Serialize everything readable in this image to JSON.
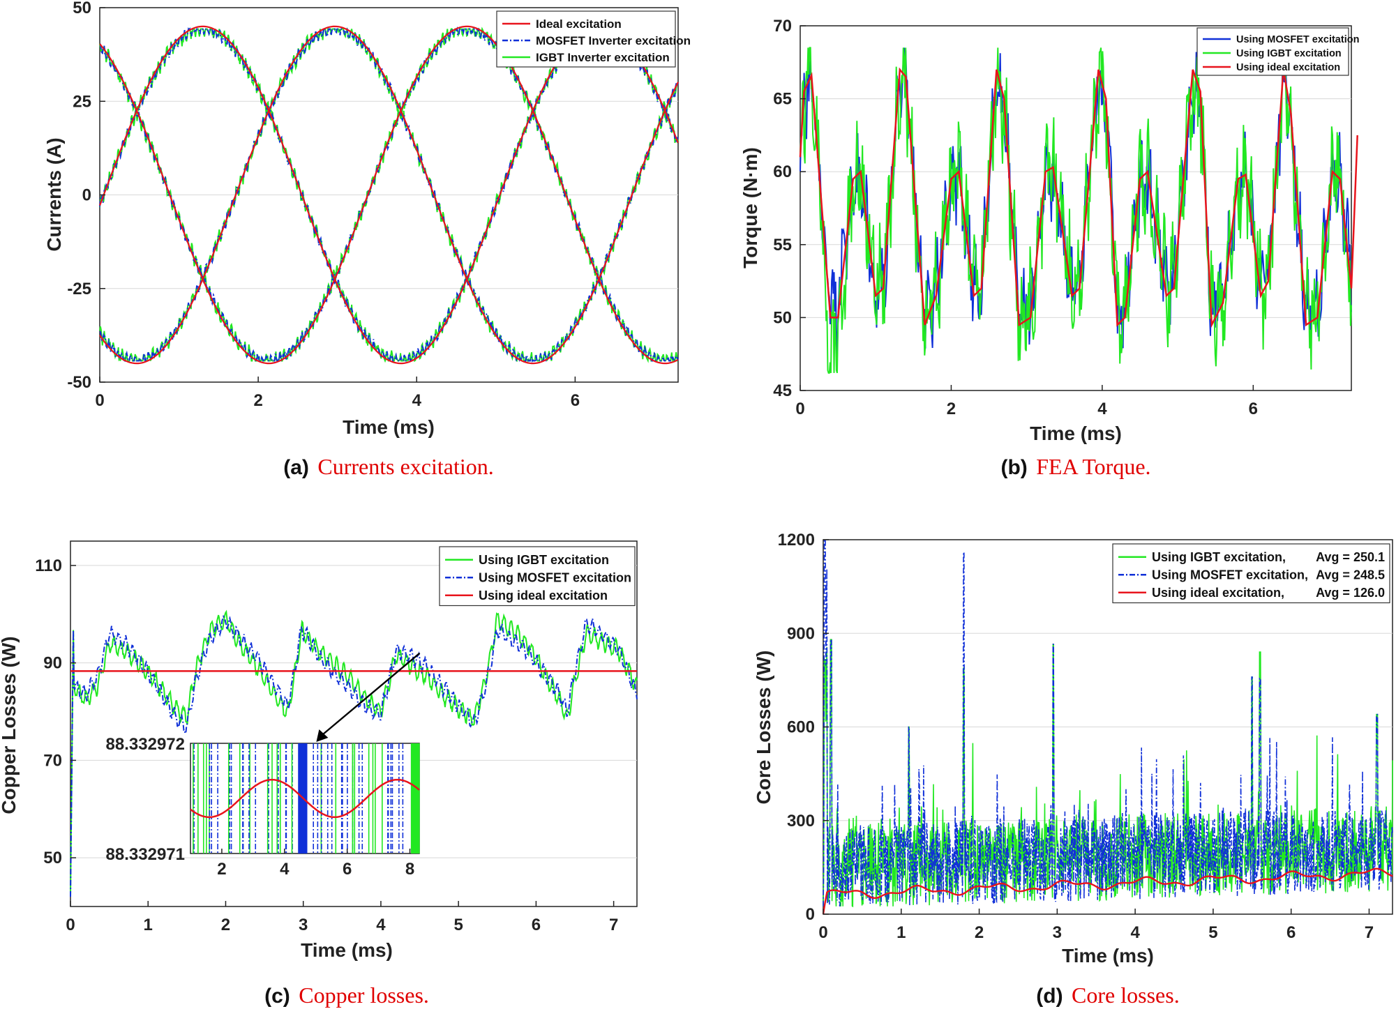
{
  "colors": {
    "red": "#e8141c",
    "green": "#22e822",
    "blue": "#1030d8",
    "grid": "#d8d8d8",
    "axis": "#222222"
  },
  "captions": [
    {
      "letter": "(a)",
      "text": "Currents excitation."
    },
    {
      "letter": "(b)",
      "text": "FEA Torque."
    },
    {
      "letter": "(c)",
      "text": "Copper losses."
    },
    {
      "letter": "(d)",
      "text": "Core losses."
    }
  ],
  "chart_data": [
    {
      "id": "a",
      "type": "line",
      "title": "",
      "xlabel": "Time (ms)",
      "ylabel": "Currents (A)",
      "xlim": [
        0,
        7.3
      ],
      "ylim": [
        -50,
        50
      ],
      "xticks": [
        0,
        2,
        4,
        6
      ],
      "yticks": [
        -50,
        -25,
        0,
        25,
        50
      ],
      "grid": "horizontal",
      "legend": "top-right",
      "signal": {
        "amplitude": 45,
        "period_ms": 5,
        "phase_offsets_deg": [
          0,
          120,
          240
        ],
        "peak_time_ms": 1.3
      },
      "series": [
        {
          "name": "Ideal excitation",
          "color": "red",
          "style": "solid",
          "ripple": 0
        },
        {
          "name": "MOSFET Inverter excitation",
          "color": "blue",
          "style": "dashdot",
          "ripple": 1.2
        },
        {
          "name": "IGBT Inverter excitation",
          "color": "green",
          "style": "solid",
          "ripple": 1.6
        }
      ]
    },
    {
      "id": "b",
      "type": "line",
      "title": "",
      "xlabel": "Time (ms)",
      "ylabel": "Torque (N·m)",
      "xlim": [
        0,
        7.3
      ],
      "ylim": [
        45,
        70
      ],
      "xticks": [
        0,
        2,
        4,
        6
      ],
      "yticks": [
        45,
        50,
        55,
        60,
        65,
        70
      ],
      "grid": "horizontal",
      "legend": "top-right",
      "ideal_points": [
        [
          0,
          61
        ],
        [
          0.05,
          65.5
        ],
        [
          0.15,
          66.6
        ],
        [
          0.4,
          50
        ],
        [
          0.5,
          50
        ],
        [
          0.7,
          59.5
        ],
        [
          0.8,
          60
        ],
        [
          1.0,
          51.5
        ],
        [
          1.1,
          52
        ],
        [
          1.32,
          67
        ],
        [
          1.4,
          66.5
        ],
        [
          1.65,
          49.5
        ],
        [
          1.8,
          51.5
        ],
        [
          2.0,
          59.5
        ],
        [
          2.1,
          60
        ],
        [
          2.3,
          51.5
        ],
        [
          2.4,
          52
        ],
        [
          2.6,
          67
        ],
        [
          2.7,
          65
        ],
        [
          2.9,
          49.5
        ],
        [
          3.05,
          50
        ],
        [
          3.25,
          60
        ],
        [
          3.35,
          60.3
        ],
        [
          3.6,
          51.5
        ],
        [
          3.7,
          52
        ],
        [
          3.95,
          67
        ],
        [
          4.05,
          65
        ],
        [
          4.2,
          49.5
        ],
        [
          4.3,
          50
        ],
        [
          4.5,
          59.5
        ],
        [
          4.6,
          60
        ],
        [
          4.85,
          51.5
        ],
        [
          4.95,
          52
        ],
        [
          5.2,
          67
        ],
        [
          5.3,
          65.5
        ],
        [
          5.45,
          49.5
        ],
        [
          5.6,
          51
        ],
        [
          5.8,
          59.5
        ],
        [
          5.9,
          59.8
        ],
        [
          6.1,
          51.5
        ],
        [
          6.2,
          52.5
        ],
        [
          6.4,
          67
        ],
        [
          6.5,
          64
        ],
        [
          6.7,
          49.5
        ],
        [
          6.85,
          50
        ],
        [
          7.05,
          60
        ],
        [
          7.15,
          59.5
        ],
        [
          7.3,
          52
        ],
        [
          7.38,
          62.5
        ]
      ],
      "series": [
        {
          "name": "Using MOSFET excitation",
          "color": "blue",
          "style": "solid",
          "ripple": 2.2
        },
        {
          "name": "Using IGBT excitation",
          "color": "green",
          "style": "solid",
          "ripple": 2.8
        },
        {
          "name": "Using ideal excitation",
          "color": "red",
          "style": "solid",
          "ripple": 0
        }
      ]
    },
    {
      "id": "c",
      "type": "line",
      "title": "",
      "xlabel": "Time (ms)",
      "ylabel": "Copper Losses (W)",
      "xlim": [
        0,
        7.3
      ],
      "ylim": [
        40,
        115
      ],
      "xticks": [
        0,
        1,
        2,
        3,
        4,
        5,
        6,
        7
      ],
      "yticks": [
        50,
        70,
        90,
        110
      ],
      "grid": "horizontal",
      "legend": "top-right",
      "ideal_value": 88.33297,
      "lossy_points": [
        [
          0,
          100
        ],
        [
          0.05,
          85
        ],
        [
          0.2,
          83
        ],
        [
          0.35,
          86
        ],
        [
          0.5,
          95
        ],
        [
          0.7,
          93
        ],
        [
          0.9,
          90
        ],
        [
          1.1,
          86
        ],
        [
          1.35,
          80
        ],
        [
          1.5,
          78
        ],
        [
          1.62,
          88
        ],
        [
          1.8,
          96
        ],
        [
          2.0,
          99
        ],
        [
          2.2,
          94
        ],
        [
          2.4,
          90
        ],
        [
          2.6,
          85
        ],
        [
          2.8,
          80
        ],
        [
          2.9,
          89
        ],
        [
          2.98,
          97
        ],
        [
          3.2,
          92
        ],
        [
          3.4,
          89
        ],
        [
          3.6,
          86
        ],
        [
          3.8,
          82
        ],
        [
          4.0,
          80
        ],
        [
          4.2,
          92
        ],
        [
          4.4,
          90
        ],
        [
          4.6,
          88
        ],
        [
          4.8,
          84
        ],
        [
          5.0,
          81
        ],
        [
          5.2,
          78
        ],
        [
          5.35,
          86
        ],
        [
          5.5,
          98
        ],
        [
          5.7,
          96
        ],
        [
          5.9,
          93
        ],
        [
          6.1,
          88
        ],
        [
          6.3,
          83
        ],
        [
          6.4,
          79
        ],
        [
          6.5,
          87
        ],
        [
          6.65,
          97
        ],
        [
          6.85,
          95
        ],
        [
          7.05,
          93
        ],
        [
          7.2,
          88
        ],
        [
          7.3,
          84
        ]
      ],
      "inset": {
        "xlim": [
          1,
          8.3
        ],
        "ylim_labels": [
          "88.332972",
          "88.332971"
        ],
        "xticks": [
          2,
          4,
          6,
          8
        ]
      },
      "series": [
        {
          "name": "Using IGBT excitation",
          "color": "green",
          "style": "solid",
          "ripple": 1.8
        },
        {
          "name": "Using MOSFET excitation",
          "color": "blue",
          "style": "dashdot",
          "ripple": 1.6
        },
        {
          "name": "Using ideal excitation",
          "color": "red",
          "style": "solid",
          "ripple": 0
        }
      ]
    },
    {
      "id": "d",
      "type": "line",
      "title": "",
      "xlabel": "Time (ms)",
      "ylabel": "Core Losses (W)",
      "xlim": [
        0,
        7.3
      ],
      "ylim": [
        0,
        1200
      ],
      "xticks": [
        0,
        1,
        2,
        3,
        4,
        5,
        6,
        7
      ],
      "yticks": [
        0,
        300,
        600,
        900,
        1200
      ],
      "grid": "horizontal",
      "legend": "top-right",
      "spikes": [
        [
          0.02,
          1200
        ],
        [
          1.8,
          1160
        ],
        [
          2.95,
          865
        ],
        [
          5.6,
          840
        ],
        [
          5.5,
          760
        ],
        [
          7.1,
          640
        ],
        [
          1.1,
          600
        ],
        [
          0.1,
          880
        ]
      ],
      "series": [
        {
          "name": "Using IGBT excitation,",
          "avg_label": "Avg = 250.1",
          "color": "green",
          "style": "solid",
          "average": 250.1
        },
        {
          "name": "Using MOSFET excitation,",
          "avg_label": "Avg = 248.5",
          "color": "blue",
          "style": "dashdot",
          "average": 248.5
        },
        {
          "name": "Using ideal excitation,",
          "avg_label": "Avg = 126.0",
          "color": "red",
          "style": "solid",
          "average": 126.0
        }
      ]
    }
  ]
}
